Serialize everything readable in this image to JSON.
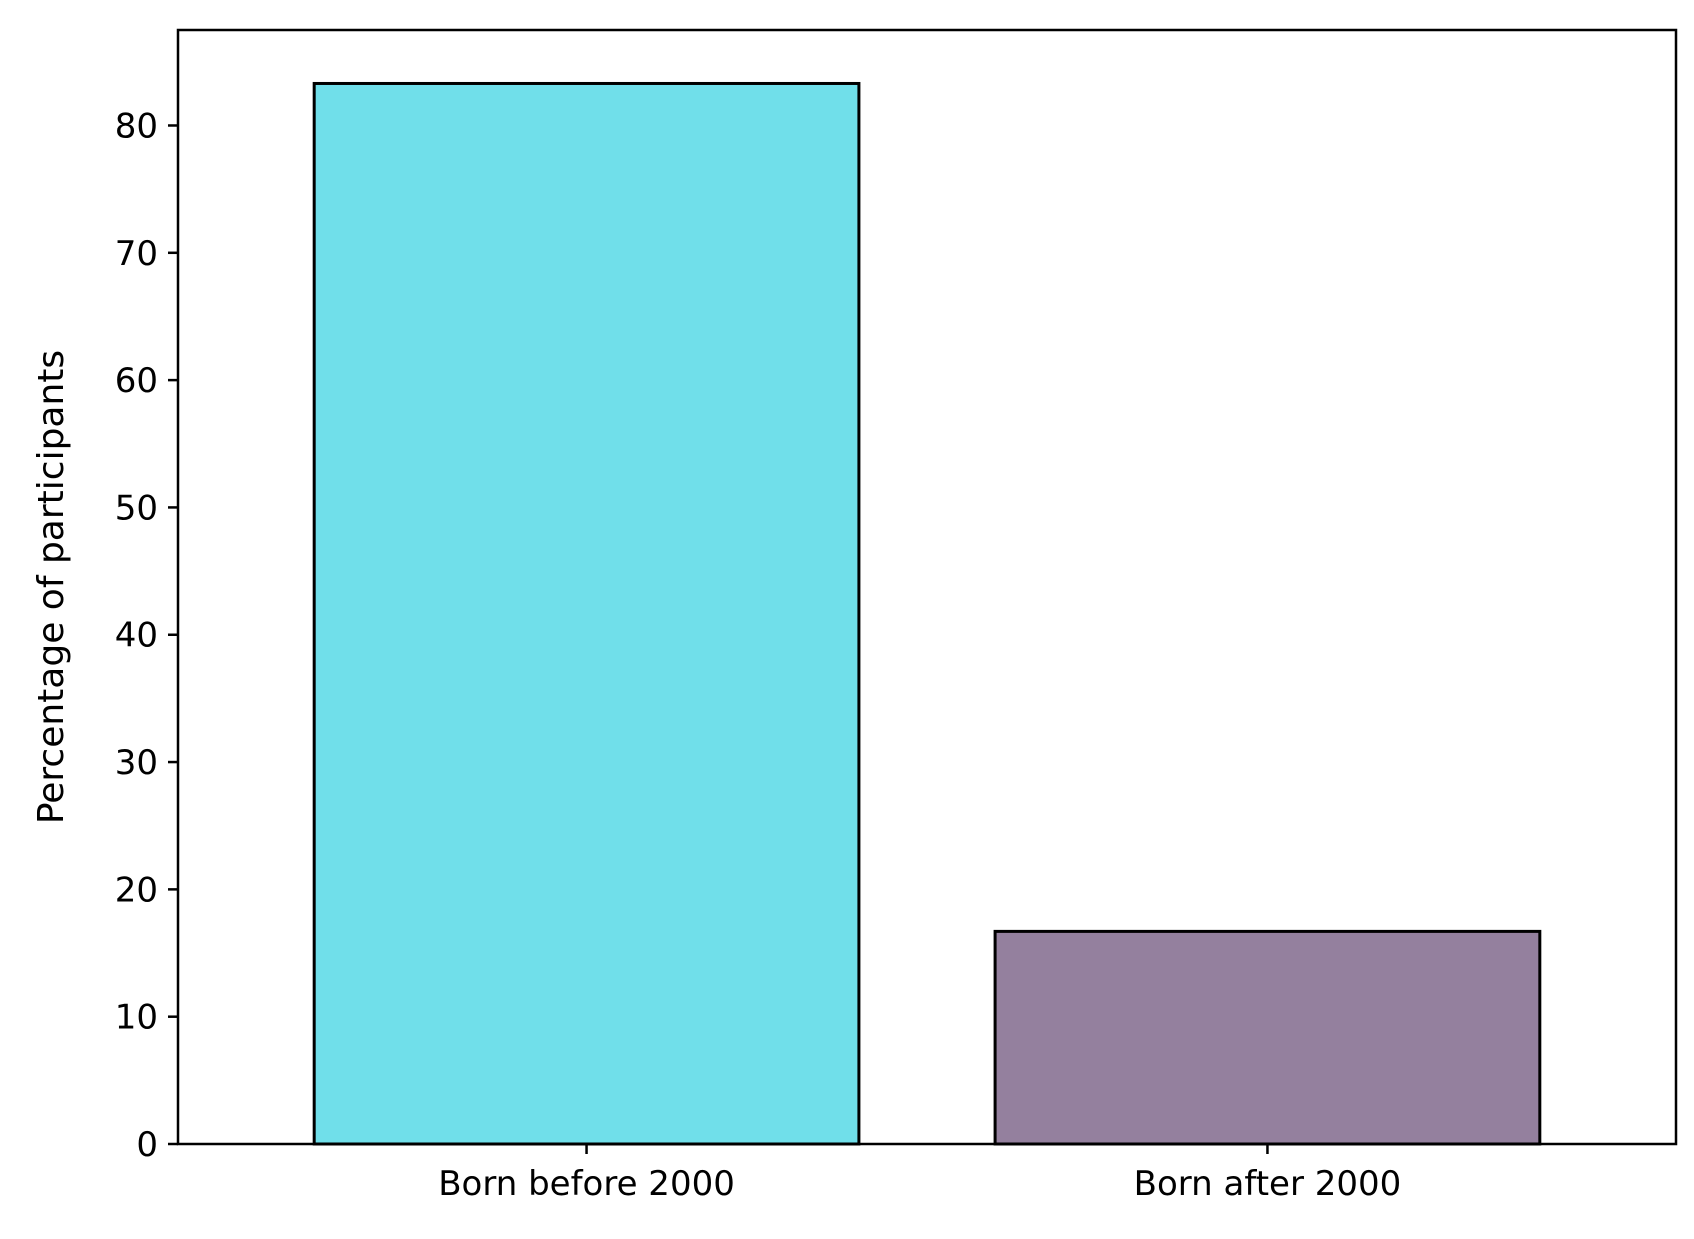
{
  "chart_data": {
    "type": "bar",
    "title": "",
    "xlabel": "",
    "ylabel": "Percentage of participants",
    "categories": [
      "Born before 2000",
      "Born after 2000"
    ],
    "values": [
      83.3,
      16.7
    ],
    "colors": [
      "#70dfea",
      "#94809e"
    ],
    "edge_color": "#000000",
    "ylim": [
      0,
      87.5
    ],
    "yticks": [
      0,
      10,
      20,
      30,
      40,
      50,
      60,
      70,
      80
    ],
    "grid": false,
    "legend": "none"
  }
}
